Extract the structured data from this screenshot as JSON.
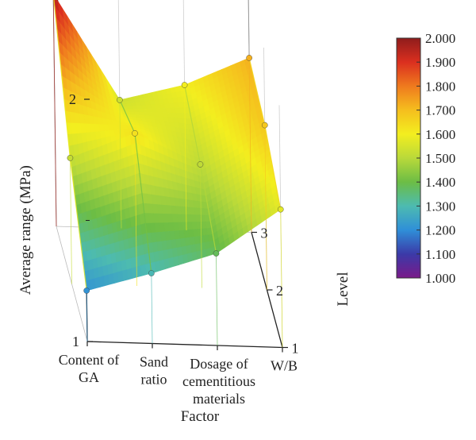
{
  "chart_data": {
    "type": "surface3d",
    "xlabel": "Factor",
    "ylabel": "Average range (MPa)",
    "zlabel": "Level",
    "factors": [
      [
        "Content of",
        "GA"
      ],
      [
        "Sand",
        "ratio"
      ],
      [
        "Dosage of",
        "cementitious",
        "materials"
      ],
      [
        "W/B"
      ]
    ],
    "levels": [
      "1",
      "2",
      "3"
    ],
    "y_ticks": [
      "1",
      "2"
    ],
    "ylim": [
      1,
      2
    ],
    "series": [
      {
        "factor": "Content of GA",
        "values": [
          1.21,
          1.52,
          1.96
        ]
      },
      {
        "factor": "Sand ratio",
        "values": [
          1.29,
          1.63,
          1.53
        ]
      },
      {
        "factor": "Dosage of cementitious materials",
        "values": [
          1.38,
          1.51,
          1.6
        ]
      },
      {
        "factor": "W/B",
        "values": [
          1.57,
          1.68,
          1.72
        ]
      }
    ],
    "colorbar": {
      "ticks": [
        "2.000",
        "1.900",
        "1.800",
        "1.700",
        "1.600",
        "1.500",
        "1.400",
        "1.300",
        "1.200",
        "1.100",
        "1.000"
      ],
      "range": [
        1.0,
        2.0
      ],
      "colors": [
        "#7a1a8a",
        "#3b3aa8",
        "#2f8fd8",
        "#4dbbb0",
        "#6cbd45",
        "#b9d93a",
        "#f3ee1f",
        "#f5be1e",
        "#ef7a1e",
        "#db2f1f",
        "#8f1c1c"
      ]
    }
  }
}
